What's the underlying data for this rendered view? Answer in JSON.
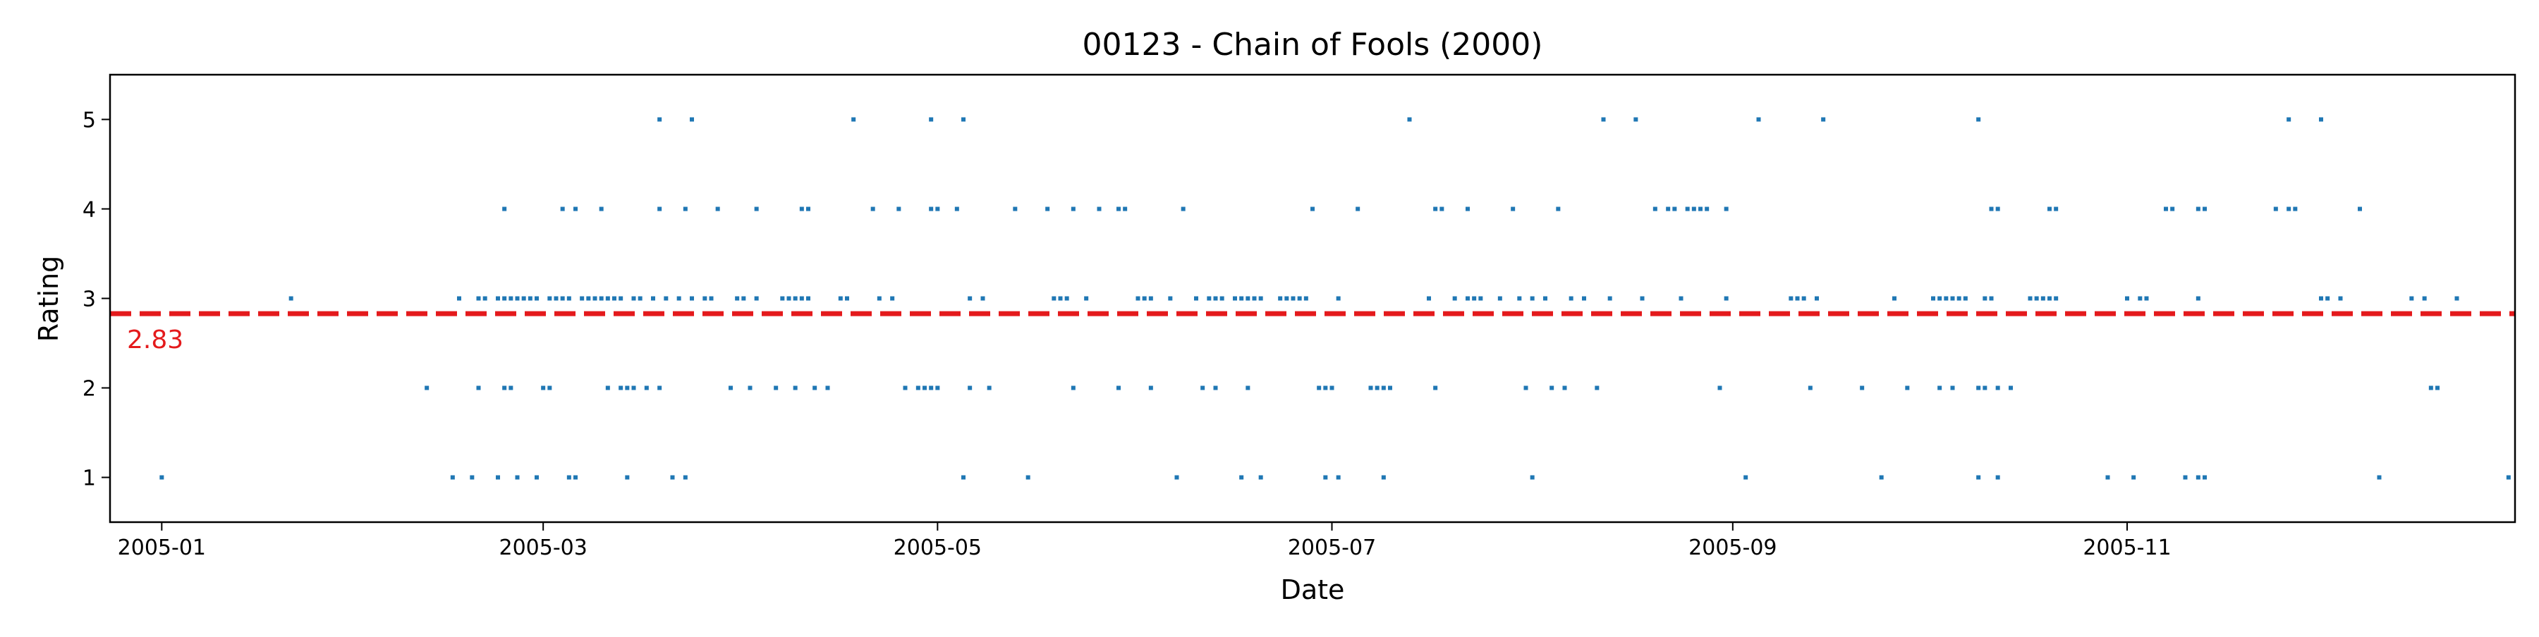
{
  "chart_data": {
    "type": "scatter",
    "title": "00123 - Chain of Fools (2000)",
    "xlabel": "Date",
    "ylabel": "Rating",
    "x_ticks": [
      "2005-01",
      "2005-03",
      "2005-05",
      "2005-07",
      "2005-09",
      "2005-11"
    ],
    "y_ticks": [
      "1",
      "2",
      "3",
      "4",
      "5"
    ],
    "xlim": [
      "2004-12-24",
      "2005-12-31"
    ],
    "ylim": [
      0.5,
      5.5
    ],
    "grid": false,
    "mean_line": {
      "value": 2.83,
      "label": "2.83",
      "color": "#e41a1c",
      "style": "dashed"
    },
    "point_color": "#1f77b4",
    "points": [
      [
        "2005-01-01",
        1
      ],
      [
        "2005-01-21",
        3
      ],
      [
        "2005-02-11",
        2
      ],
      [
        "2005-02-15",
        1
      ],
      [
        "2005-02-16",
        3
      ],
      [
        "2005-02-18",
        1
      ],
      [
        "2005-02-19",
        2
      ],
      [
        "2005-02-19",
        3
      ],
      [
        "2005-02-20",
        3
      ],
      [
        "2005-02-22",
        1
      ],
      [
        "2005-02-22",
        3
      ],
      [
        "2005-02-23",
        2
      ],
      [
        "2005-02-23",
        4
      ],
      [
        "2005-02-23",
        3
      ],
      [
        "2005-02-24",
        2
      ],
      [
        "2005-02-24",
        3
      ],
      [
        "2005-02-25",
        1
      ],
      [
        "2005-02-25",
        3
      ],
      [
        "2005-02-26",
        3
      ],
      [
        "2005-02-27",
        3
      ],
      [
        "2005-02-28",
        1
      ],
      [
        "2005-02-28",
        3
      ],
      [
        "2005-03-01",
        2
      ],
      [
        "2005-03-02",
        2
      ],
      [
        "2005-03-02",
        3
      ],
      [
        "2005-03-03",
        3
      ],
      [
        "2005-03-04",
        4
      ],
      [
        "2005-03-04",
        3
      ],
      [
        "2005-03-05",
        1
      ],
      [
        "2005-03-05",
        3
      ],
      [
        "2005-03-06",
        4
      ],
      [
        "2005-03-06",
        1
      ],
      [
        "2005-03-07",
        3
      ],
      [
        "2005-03-08",
        3
      ],
      [
        "2005-03-09",
        3
      ],
      [
        "2005-03-10",
        4
      ],
      [
        "2005-03-10",
        3
      ],
      [
        "2005-03-11",
        2
      ],
      [
        "2005-03-11",
        3
      ],
      [
        "2005-03-12",
        3
      ],
      [
        "2005-03-13",
        2
      ],
      [
        "2005-03-13",
        3
      ],
      [
        "2005-03-14",
        2
      ],
      [
        "2005-03-14",
        1
      ],
      [
        "2005-03-15",
        2
      ],
      [
        "2005-03-15",
        3
      ],
      [
        "2005-03-16",
        3
      ],
      [
        "2005-03-17",
        2
      ],
      [
        "2005-03-18",
        3
      ],
      [
        "2005-03-19",
        2
      ],
      [
        "2005-03-19",
        5
      ],
      [
        "2005-03-19",
        4
      ],
      [
        "2005-03-20",
        3
      ],
      [
        "2005-03-21",
        1
      ],
      [
        "2005-03-22",
        3
      ],
      [
        "2005-03-23",
        4
      ],
      [
        "2005-03-23",
        1
      ],
      [
        "2005-03-24",
        3
      ],
      [
        "2005-03-24",
        5
      ],
      [
        "2005-03-26",
        3
      ],
      [
        "2005-03-27",
        3
      ],
      [
        "2005-03-28",
        4
      ],
      [
        "2005-03-30",
        2
      ],
      [
        "2005-03-31",
        3
      ],
      [
        "2005-04-01",
        3
      ],
      [
        "2005-04-02",
        2
      ],
      [
        "2005-04-03",
        4
      ],
      [
        "2005-04-03",
        3
      ],
      [
        "2005-04-06",
        2
      ],
      [
        "2005-04-07",
        3
      ],
      [
        "2005-04-08",
        3
      ],
      [
        "2005-04-09",
        2
      ],
      [
        "2005-04-09",
        3
      ],
      [
        "2005-04-10",
        4
      ],
      [
        "2005-04-10",
        3
      ],
      [
        "2005-04-11",
        4
      ],
      [
        "2005-04-11",
        3
      ],
      [
        "2005-04-12",
        2
      ],
      [
        "2005-04-14",
        2
      ],
      [
        "2005-04-16",
        3
      ],
      [
        "2005-04-17",
        3
      ],
      [
        "2005-04-18",
        5
      ],
      [
        "2005-04-21",
        4
      ],
      [
        "2005-04-22",
        3
      ],
      [
        "2005-04-24",
        3
      ],
      [
        "2005-04-25",
        4
      ],
      [
        "2005-04-26",
        2
      ],
      [
        "2005-04-28",
        2
      ],
      [
        "2005-04-29",
        2
      ],
      [
        "2005-04-30",
        4
      ],
      [
        "2005-04-30",
        5
      ],
      [
        "2005-04-30",
        2
      ],
      [
        "2005-05-01",
        4
      ],
      [
        "2005-05-01",
        2
      ],
      [
        "2005-05-04",
        4
      ],
      [
        "2005-05-05",
        1
      ],
      [
        "2005-05-05",
        5
      ],
      [
        "2005-05-06",
        2
      ],
      [
        "2005-05-06",
        3
      ],
      [
        "2005-05-08",
        3
      ],
      [
        "2005-05-09",
        2
      ],
      [
        "2005-05-13",
        4
      ],
      [
        "2005-05-15",
        1
      ],
      [
        "2005-05-18",
        4
      ],
      [
        "2005-05-19",
        3
      ],
      [
        "2005-05-20",
        3
      ],
      [
        "2005-05-21",
        3
      ],
      [
        "2005-05-22",
        4
      ],
      [
        "2005-05-22",
        2
      ],
      [
        "2005-05-24",
        3
      ],
      [
        "2005-05-26",
        4
      ],
      [
        "2005-05-29",
        4
      ],
      [
        "2005-05-29",
        2
      ],
      [
        "2005-05-30",
        4
      ],
      [
        "2005-06-01",
        3
      ],
      [
        "2005-06-02",
        3
      ],
      [
        "2005-06-03",
        2
      ],
      [
        "2005-06-03",
        3
      ],
      [
        "2005-06-06",
        3
      ],
      [
        "2005-06-07",
        1
      ],
      [
        "2005-06-08",
        4
      ],
      [
        "2005-06-10",
        3
      ],
      [
        "2005-06-11",
        2
      ],
      [
        "2005-06-12",
        3
      ],
      [
        "2005-06-13",
        3
      ],
      [
        "2005-06-13",
        2
      ],
      [
        "2005-06-14",
        3
      ],
      [
        "2005-06-16",
        3
      ],
      [
        "2005-06-17",
        1
      ],
      [
        "2005-06-17",
        3
      ],
      [
        "2005-06-18",
        2
      ],
      [
        "2005-06-18",
        3
      ],
      [
        "2005-06-19",
        3
      ],
      [
        "2005-06-20",
        3
      ],
      [
        "2005-06-20",
        1
      ],
      [
        "2005-06-23",
        3
      ],
      [
        "2005-06-24",
        3
      ],
      [
        "2005-06-25",
        3
      ],
      [
        "2005-06-26",
        3
      ],
      [
        "2005-06-27",
        3
      ],
      [
        "2005-06-28",
        4
      ],
      [
        "2005-06-29",
        2
      ],
      [
        "2005-06-30",
        2
      ],
      [
        "2005-06-30",
        1
      ],
      [
        "2005-07-01",
        2
      ],
      [
        "2005-07-02",
        3
      ],
      [
        "2005-07-02",
        1
      ],
      [
        "2005-07-05",
        4
      ],
      [
        "2005-07-07",
        2
      ],
      [
        "2005-07-08",
        2
      ],
      [
        "2005-07-09",
        2
      ],
      [
        "2005-07-09",
        1
      ],
      [
        "2005-07-10",
        2
      ],
      [
        "2005-07-13",
        5
      ],
      [
        "2005-07-16",
        3
      ],
      [
        "2005-07-17",
        2
      ],
      [
        "2005-07-17",
        4
      ],
      [
        "2005-07-18",
        4
      ],
      [
        "2005-07-20",
        3
      ],
      [
        "2005-07-22",
        4
      ],
      [
        "2005-07-22",
        3
      ],
      [
        "2005-07-23",
        3
      ],
      [
        "2005-07-24",
        3
      ],
      [
        "2005-07-27",
        3
      ],
      [
        "2005-07-29",
        4
      ],
      [
        "2005-07-30",
        3
      ],
      [
        "2005-07-31",
        2
      ],
      [
        "2005-08-01",
        1
      ],
      [
        "2005-08-01",
        3
      ],
      [
        "2005-08-03",
        3
      ],
      [
        "2005-08-04",
        2
      ],
      [
        "2005-08-05",
        4
      ],
      [
        "2005-08-06",
        2
      ],
      [
        "2005-08-07",
        3
      ],
      [
        "2005-08-09",
        3
      ],
      [
        "2005-08-11",
        2
      ],
      [
        "2005-08-12",
        5
      ],
      [
        "2005-08-13",
        3
      ],
      [
        "2005-08-17",
        5
      ],
      [
        "2005-08-18",
        3
      ],
      [
        "2005-08-20",
        4
      ],
      [
        "2005-08-22",
        4
      ],
      [
        "2005-08-23",
        4
      ],
      [
        "2005-08-24",
        3
      ],
      [
        "2005-08-25",
        4
      ],
      [
        "2005-08-26",
        4
      ],
      [
        "2005-08-27",
        4
      ],
      [
        "2005-08-28",
        4
      ],
      [
        "2005-08-30",
        2
      ],
      [
        "2005-08-31",
        4
      ],
      [
        "2005-08-31",
        3
      ],
      [
        "2005-09-03",
        1
      ],
      [
        "2005-09-05",
        5
      ],
      [
        "2005-09-10",
        3
      ],
      [
        "2005-09-11",
        3
      ],
      [
        "2005-09-12",
        3
      ],
      [
        "2005-09-13",
        2
      ],
      [
        "2005-09-14",
        3
      ],
      [
        "2005-09-15",
        5
      ],
      [
        "2005-09-21",
        2
      ],
      [
        "2005-09-24",
        1
      ],
      [
        "2005-09-26",
        3
      ],
      [
        "2005-09-28",
        2
      ],
      [
        "2005-10-02",
        3
      ],
      [
        "2005-10-03",
        2
      ],
      [
        "2005-10-03",
        3
      ],
      [
        "2005-10-04",
        3
      ],
      [
        "2005-10-05",
        2
      ],
      [
        "2005-10-05",
        3
      ],
      [
        "2005-10-06",
        3
      ],
      [
        "2005-10-07",
        3
      ],
      [
        "2005-10-09",
        5
      ],
      [
        "2005-10-09",
        2
      ],
      [
        "2005-10-09",
        1
      ],
      [
        "2005-10-10",
        2
      ],
      [
        "2005-10-10",
        3
      ],
      [
        "2005-10-11",
        4
      ],
      [
        "2005-10-11",
        3
      ],
      [
        "2005-10-12",
        2
      ],
      [
        "2005-10-12",
        4
      ],
      [
        "2005-10-12",
        1
      ],
      [
        "2005-10-14",
        2
      ],
      [
        "2005-10-17",
        3
      ],
      [
        "2005-10-18",
        3
      ],
      [
        "2005-10-19",
        3
      ],
      [
        "2005-10-20",
        4
      ],
      [
        "2005-10-20",
        3
      ],
      [
        "2005-10-21",
        4
      ],
      [
        "2005-10-21",
        3
      ],
      [
        "2005-10-29",
        1
      ],
      [
        "2005-11-01",
        3
      ],
      [
        "2005-11-02",
        1
      ],
      [
        "2005-11-03",
        3
      ],
      [
        "2005-11-04",
        3
      ],
      [
        "2005-11-04",
        3
      ],
      [
        "2005-11-07",
        4
      ],
      [
        "2005-11-08",
        4
      ],
      [
        "2005-11-10",
        1
      ],
      [
        "2005-11-12",
        4
      ],
      [
        "2005-11-12",
        3
      ],
      [
        "2005-11-12",
        1
      ],
      [
        "2005-11-13",
        4
      ],
      [
        "2005-11-13",
        1
      ],
      [
        "2005-11-24",
        4
      ],
      [
        "2005-11-26",
        5
      ],
      [
        "2005-11-26",
        4
      ],
      [
        "2005-11-27",
        4
      ],
      [
        "2005-12-01",
        5
      ],
      [
        "2005-12-01",
        3
      ],
      [
        "2005-12-02",
        3
      ],
      [
        "2005-12-04",
        3
      ],
      [
        "2005-12-07",
        4
      ],
      [
        "2005-12-10",
        1
      ],
      [
        "2005-12-15",
        3
      ],
      [
        "2005-12-17",
        3
      ],
      [
        "2005-12-18",
        2
      ],
      [
        "2005-12-19",
        2
      ],
      [
        "2005-12-22",
        3
      ],
      [
        "2005-12-30",
        1
      ]
    ]
  }
}
